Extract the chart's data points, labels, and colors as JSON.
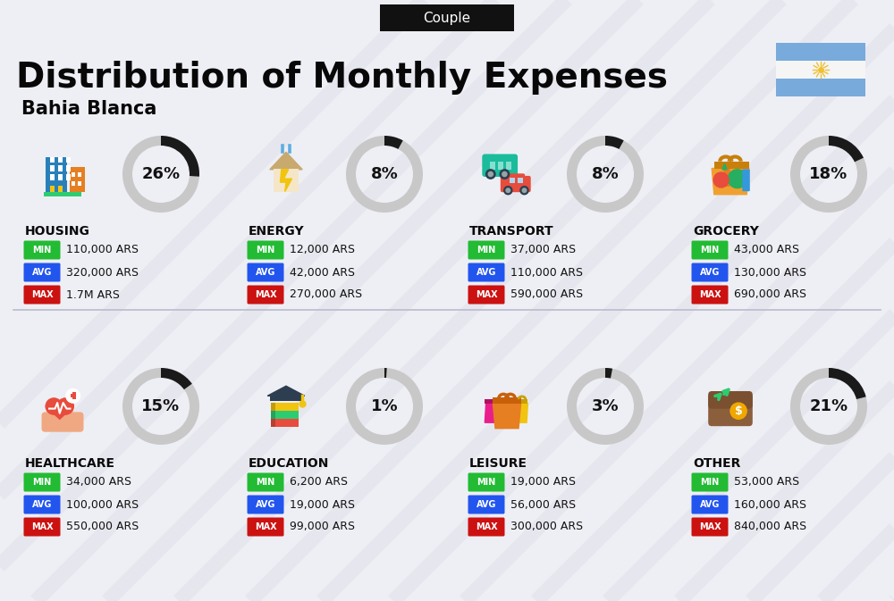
{
  "title": "Distribution of Monthly Expenses",
  "subtitle": "Bahia Blanca",
  "tag": "Couple",
  "bg_color": "#eeeff5",
  "categories": [
    {
      "name": "HOUSING",
      "pct": 26,
      "min": "110,000 ARS",
      "avg": "320,000 ARS",
      "max": "1.7M ARS",
      "row": 0,
      "col": 0
    },
    {
      "name": "ENERGY",
      "pct": 8,
      "min": "12,000 ARS",
      "avg": "42,000 ARS",
      "max": "270,000 ARS",
      "row": 0,
      "col": 1
    },
    {
      "name": "TRANSPORT",
      "pct": 8,
      "min": "37,000 ARS",
      "avg": "110,000 ARS",
      "max": "590,000 ARS",
      "row": 0,
      "col": 2
    },
    {
      "name": "GROCERY",
      "pct": 18,
      "min": "43,000 ARS",
      "avg": "130,000 ARS",
      "max": "690,000 ARS",
      "row": 0,
      "col": 3
    },
    {
      "name": "HEALTHCARE",
      "pct": 15,
      "min": "34,000 ARS",
      "avg": "100,000 ARS",
      "max": "550,000 ARS",
      "row": 1,
      "col": 0
    },
    {
      "name": "EDUCATION",
      "pct": 1,
      "min": "6,200 ARS",
      "avg": "19,000 ARS",
      "max": "99,000 ARS",
      "row": 1,
      "col": 1
    },
    {
      "name": "LEISURE",
      "pct": 3,
      "min": "19,000 ARS",
      "avg": "56,000 ARS",
      "max": "300,000 ARS",
      "row": 1,
      "col": 2
    },
    {
      "name": "OTHER",
      "pct": 21,
      "min": "53,000 ARS",
      "avg": "160,000 ARS",
      "max": "840,000 ARS",
      "row": 1,
      "col": 3
    }
  ],
  "min_color": "#22bb33",
  "avg_color": "#2255ee",
  "max_color": "#cc1111",
  "ring_fg": "#1a1a1a",
  "ring_bg": "#c8c8c8",
  "flag_blue": "#78aadc",
  "sun_color": "#f0c030",
  "stripe_color": "#d8d8e2"
}
